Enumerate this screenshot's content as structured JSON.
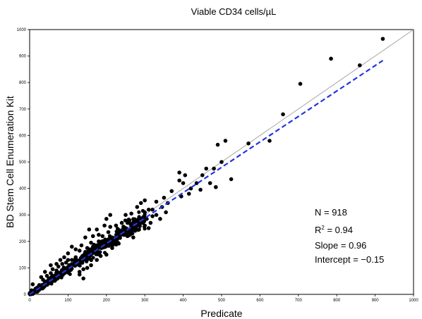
{
  "chart_data": {
    "type": "scatter",
    "title": "Viable CD34 cells/µL",
    "xlabel": "Predicate",
    "ylabel": "BD Stem Cell Enumeration Kit",
    "xlim": [
      0,
      1000
    ],
    "ylim": [
      0,
      1000
    ],
    "xticks": [
      "0",
      "100",
      "200",
      "300",
      "400",
      "500",
      "600",
      "700",
      "800",
      "900",
      "1000"
    ],
    "yticks": [
      "0",
      "100",
      "200",
      "300",
      "400",
      "500",
      "600",
      "700",
      "800",
      "900",
      "1000"
    ],
    "grid": false,
    "stats": {
      "n_label": "N = 918",
      "r2_prefix": "R",
      "r2_sup": "2",
      "r2_suffix": " = 0.94",
      "slope_label": "Slope = 0.96",
      "intercept_label": "Intercept = −0.15"
    },
    "identity_line": {
      "x": [
        0,
        1000
      ],
      "y": [
        0,
        1000
      ],
      "color": "#a6a6a6"
    },
    "regression_line": {
      "slope": 0.96,
      "intercept": -0.15,
      "x": [
        0,
        920
      ],
      "color": "#1f36e0"
    },
    "outlier_points": [
      [
        920,
        965
      ],
      [
        785,
        890
      ],
      [
        860,
        865
      ],
      [
        705,
        795
      ],
      [
        660,
        680
      ],
      [
        570,
        570
      ],
      [
        625,
        580
      ],
      [
        490,
        565
      ],
      [
        510,
        580
      ],
      [
        500,
        500
      ],
      [
        525,
        435
      ],
      [
        480,
        475
      ],
      [
        460,
        475
      ],
      [
        405,
        450
      ],
      [
        390,
        460
      ],
      [
        450,
        450
      ],
      [
        470,
        420
      ],
      [
        435,
        420
      ],
      [
        420,
        400
      ],
      [
        400,
        420
      ],
      [
        390,
        430
      ],
      [
        445,
        395
      ],
      [
        485,
        405
      ],
      [
        415,
        380
      ],
      [
        395,
        370
      ],
      [
        370,
        390
      ],
      [
        360,
        345
      ],
      [
        350,
        365
      ],
      [
        330,
        350
      ],
      [
        330,
        300
      ],
      [
        355,
        310
      ],
      [
        310,
        320
      ],
      [
        320,
        295
      ],
      [
        300,
        310
      ],
      [
        300,
        355
      ],
      [
        290,
        345
      ],
      [
        280,
        330
      ],
      [
        265,
        305
      ],
      [
        260,
        280
      ],
      [
        250,
        300
      ],
      [
        240,
        270
      ],
      [
        230,
        245
      ],
      [
        225,
        260
      ],
      [
        210,
        300
      ],
      [
        200,
        285
      ],
      [
        195,
        260
      ],
      [
        250,
        230
      ],
      [
        270,
        250
      ],
      [
        285,
        290
      ],
      [
        215,
        215
      ],
      [
        205,
        235
      ],
      [
        190,
        220
      ],
      [
        180,
        200
      ],
      [
        175,
        165
      ],
      [
        165,
        180
      ],
      [
        160,
        195
      ],
      [
        150,
        175
      ],
      [
        145,
        160
      ],
      [
        140,
        145
      ],
      [
        130,
        165
      ],
      [
        120,
        140
      ],
      [
        120,
        115
      ],
      [
        110,
        130
      ],
      [
        100,
        130
      ],
      [
        95,
        120
      ],
      [
        90,
        100
      ],
      [
        85,
        115
      ],
      [
        80,
        80
      ],
      [
        75,
        105
      ],
      [
        70,
        90
      ],
      [
        60,
        70
      ],
      [
        60,
        95
      ],
      [
        55,
        80
      ],
      [
        50,
        60
      ],
      [
        45,
        70
      ],
      [
        40,
        40
      ],
      [
        35,
        55
      ],
      [
        30,
        25
      ],
      [
        25,
        35
      ],
      [
        20,
        10
      ],
      [
        15,
        20
      ],
      [
        10,
        5
      ],
      [
        5,
        15
      ],
      [
        8,
        38
      ],
      [
        3,
        2
      ],
      [
        140,
        95
      ],
      [
        150,
        100
      ],
      [
        160,
        110
      ],
      [
        175,
        130
      ],
      [
        130,
        75
      ],
      [
        185,
        145
      ],
      [
        200,
        150
      ],
      [
        215,
        175
      ],
      [
        225,
        190
      ],
      [
        235,
        215
      ],
      [
        255,
        220
      ],
      [
        265,
        235
      ],
      [
        245,
        255
      ],
      [
        280,
        265
      ],
      [
        295,
        270
      ],
      [
        305,
        285
      ],
      [
        315,
        270
      ],
      [
        340,
        285
      ],
      [
        345,
        330
      ],
      [
        320,
        320
      ],
      [
        165,
        220
      ],
      [
        155,
        245
      ],
      [
        135,
        185
      ],
      [
        110,
        180
      ],
      [
        100,
        155
      ],
      [
        90,
        140
      ],
      [
        120,
        170
      ],
      [
        145,
        215
      ],
      [
        80,
        130
      ],
      [
        70,
        115
      ],
      [
        55,
        110
      ],
      [
        40,
        85
      ],
      [
        30,
        65
      ],
      [
        140,
        60
      ],
      [
        130,
        85
      ],
      [
        180,
        225
      ],
      [
        175,
        245
      ],
      [
        195,
        200
      ],
      [
        230,
        195
      ],
      [
        210,
        255
      ],
      [
        255,
        270
      ],
      [
        270,
        215
      ],
      [
        285,
        245
      ],
      [
        300,
        260
      ],
      [
        310,
        250
      ]
    ]
  }
}
